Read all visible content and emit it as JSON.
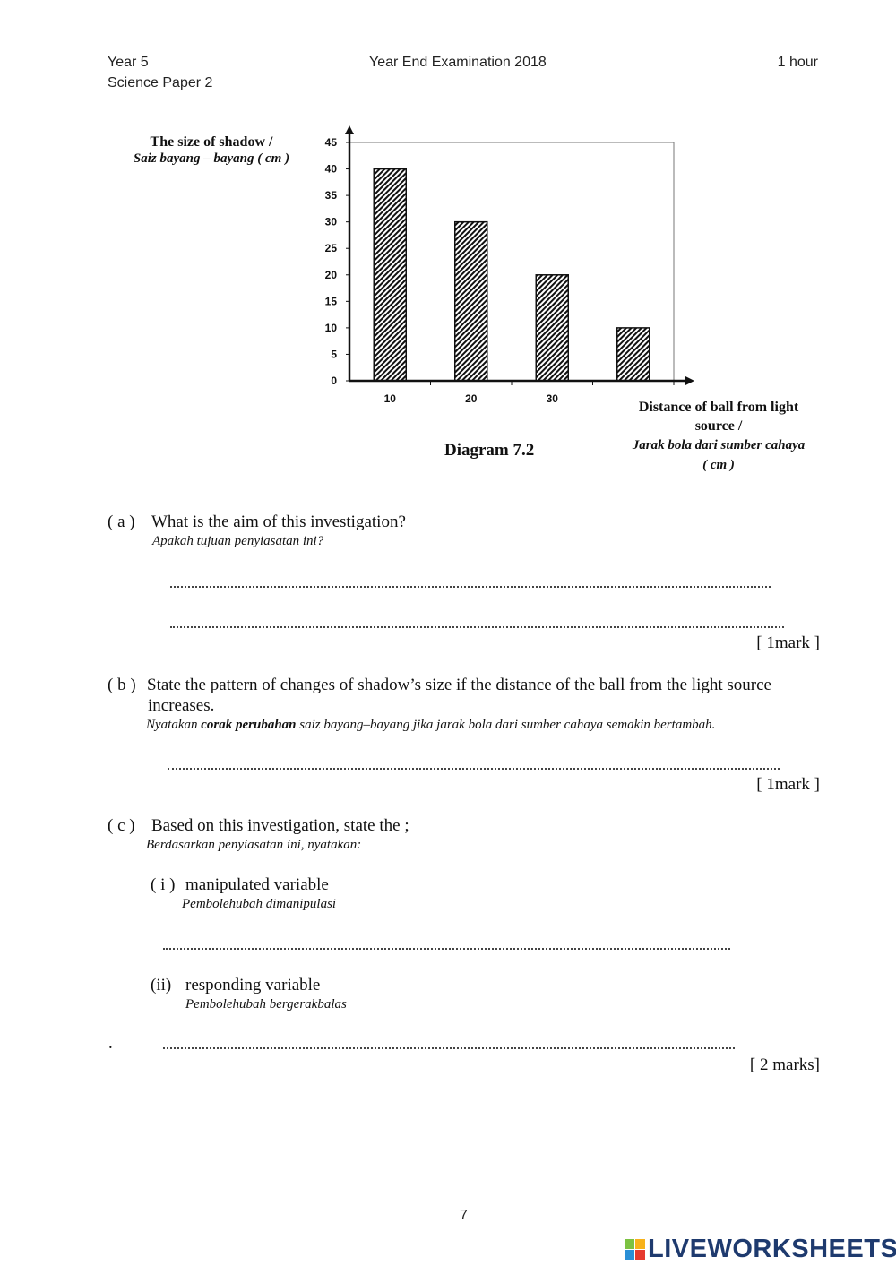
{
  "header": {
    "left_line1": "Year 5",
    "left_line2": "Science Paper 2",
    "center": "Year End Examination 2018",
    "right": "1 hour"
  },
  "chart_data": {
    "type": "bar",
    "categories": [
      "10",
      "20",
      "30",
      ""
    ],
    "values": [
      40,
      30,
      20,
      10
    ],
    "ylim": [
      0,
      45
    ],
    "yticks": [
      0,
      5,
      10,
      15,
      20,
      25,
      30,
      35,
      40,
      45
    ],
    "ylabel_en": "The size of shadow /",
    "ylabel_ms": "Saiz bayang – bayang ( cm )",
    "xlabel_en_1": "Distance of ball from light",
    "xlabel_en_2": "source /",
    "xlabel_ms_1": "Jarak bola dari sumber cahaya",
    "xlabel_ms_2": "( cm )",
    "title": "Diagram 7.2",
    "bar_fill": "hatched",
    "grid": false,
    "legend": "none"
  },
  "questions": {
    "a": {
      "num": "( a )",
      "text": "What is the aim of this investigation?",
      "ms": "Apakah tujuan penyiasatan ini?",
      "marks": "[ 1mark ]"
    },
    "b": {
      "num": "( b )",
      "text": "State the pattern of changes of shadow’s size if the distance of the ball from the light source",
      "text2": "increases.",
      "ms_pre": "Nyatakan ",
      "ms_bold": "corak perubahan",
      "ms_post": " saiz bayang–bayang jika jarak bola dari sumber cahaya semakin bertambah.",
      "marks": "[ 1mark ]"
    },
    "c": {
      "num": "( c )",
      "text": "Based on this investigation, state the ;",
      "ms": "Berdasarkan penyiasatan ini, nyatakan:",
      "i": {
        "num": "( i )",
        "text": "manipulated variable",
        "ms": "Pembolehubah dimanipulasi"
      },
      "ii": {
        "num": "(ii)",
        "text": "responding variable",
        "ms": "Pembolehubah bergerakbalas"
      },
      "stray_dot": ".",
      "marks": "[ 2 marks]"
    }
  },
  "page_number": "7",
  "watermark": {
    "text": "LIVEWORKSHEETS",
    "badge": [
      "L",
      "I",
      "V",
      "E"
    ],
    "color": "#1e3a6e"
  }
}
